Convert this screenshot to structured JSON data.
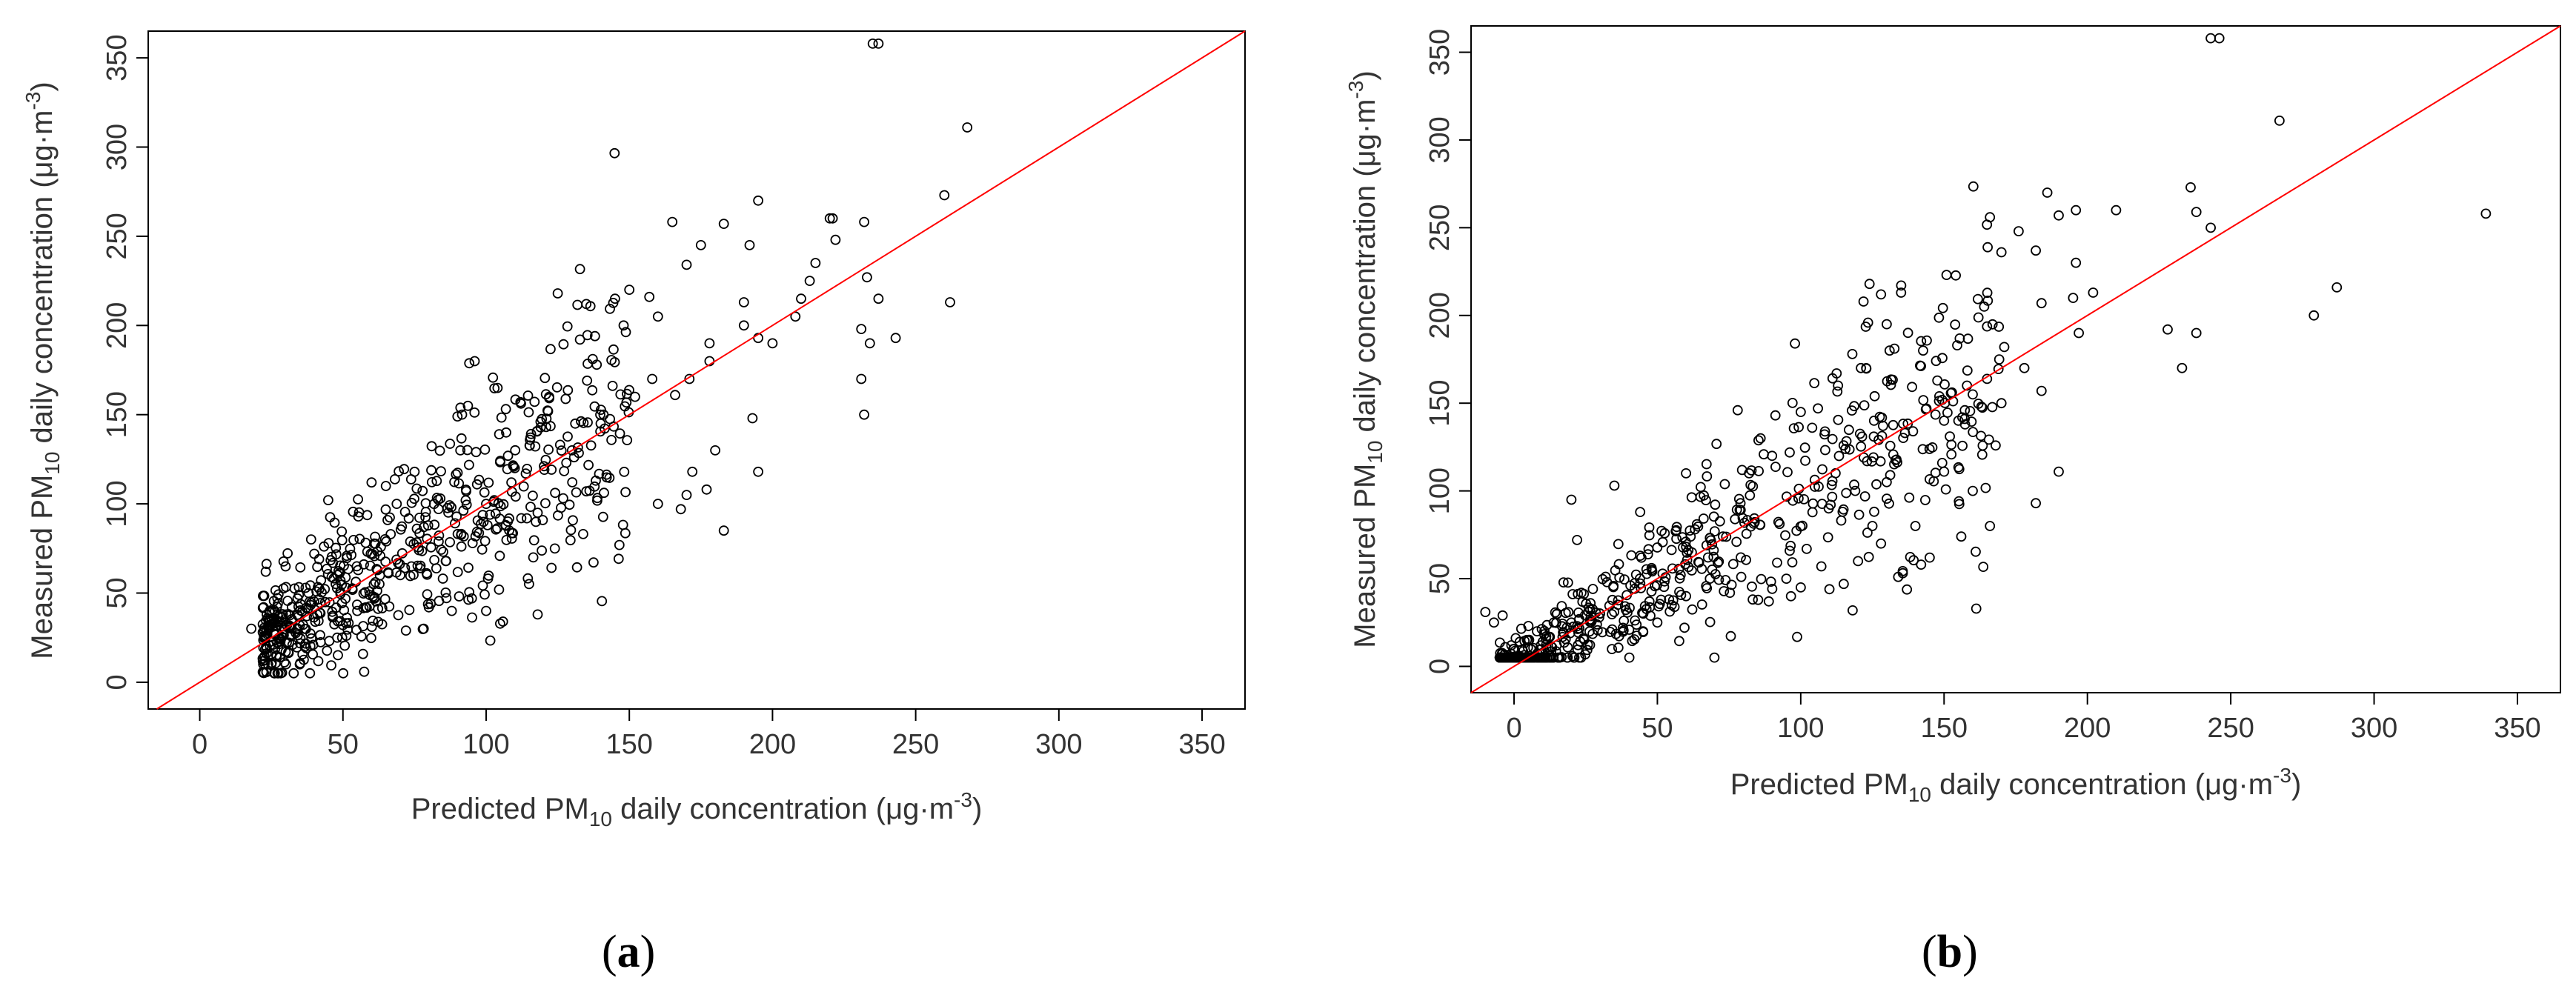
{
  "chart_data": [
    {
      "type": "scatter",
      "panel_label": "(a)",
      "panel_letter": "a",
      "xlabel": "Predicted PM10 daily concentration (μg·m-3)",
      "xlabel_parts": {
        "pre": "Predicted PM",
        "sub": "10",
        "mid": " daily concentration (",
        "unit": "μg",
        "dot": "·",
        "m": "m",
        "sup": "-3",
        "close": ")"
      },
      "ylabel": "Measured PM10 daily concentration (μg·m-3)",
      "ylabel_parts": {
        "pre": "Measured PM",
        "sub": "10",
        "mid": " daily concentration (",
        "unit": "μg",
        "dot": "·",
        "m": "m",
        "sup": "-3",
        "close": ")"
      },
      "xlim": [
        -18,
        365
      ],
      "ylim": [
        -15,
        365
      ],
      "xticks": [
        0,
        50,
        100,
        150,
        200,
        250,
        300,
        350
      ],
      "yticks": [
        0,
        50,
        100,
        150,
        200,
        250,
        300,
        350
      ],
      "reference_line": {
        "type": "1:1",
        "color": "#ff0000"
      },
      "marker": "open-circle",
      "point_color": "#000000",
      "cloud_sample": {
        "n": 620,
        "x_range": [
          22,
          150
        ],
        "relation": "y ≈ x",
        "note": "dense cloud of daily points, estimated"
      },
      "points": [
        [
          235,
          358
        ],
        [
          237,
          358
        ],
        [
          268,
          311
        ],
        [
          260,
          273
        ],
        [
          262,
          213
        ],
        [
          232,
          258
        ],
        [
          220,
          260
        ],
        [
          221,
          260
        ],
        [
          222,
          248
        ],
        [
          233,
          227
        ],
        [
          231,
          198
        ],
        [
          234,
          190
        ],
        [
          232,
          150
        ],
        [
          231,
          170
        ],
        [
          243,
          193
        ],
        [
          237,
          215
        ],
        [
          195,
          270
        ],
        [
          183,
          257
        ],
        [
          192,
          245
        ],
        [
          190,
          200
        ],
        [
          195,
          193
        ],
        [
          193,
          148
        ],
        [
          195,
          118
        ],
        [
          175,
          245
        ],
        [
          165,
          258
        ],
        [
          170,
          234
        ],
        [
          160,
          205
        ],
        [
          178,
          180
        ],
        [
          190,
          213
        ],
        [
          180,
          130
        ],
        [
          200,
          190
        ],
        [
          210,
          215
        ],
        [
          213,
          225
        ],
        [
          215,
          235
        ],
        [
          208,
          205
        ],
        [
          157,
          216
        ],
        [
          150,
          220
        ],
        [
          145,
          215
        ],
        [
          135,
          212
        ],
        [
          125,
          218
        ],
        [
          138,
          194
        ],
        [
          148,
          200
        ],
        [
          170,
          105
        ],
        [
          168,
          97
        ],
        [
          160,
          100
        ],
        [
          183,
          85
        ],
        [
          172,
          118
        ],
        [
          177,
          108
        ],
        [
          119,
          146
        ],
        [
          110,
          120
        ],
        [
          128,
          123
        ],
        [
          100,
          100
        ],
        [
          118,
          95
        ],
        [
          135,
          107
        ],
        [
          140,
          145
        ],
        [
          96,
          180
        ],
        [
          104,
          165
        ],
        [
          112,
          157
        ],
        [
          90,
          149
        ],
        [
          60,
          112
        ],
        [
          65,
          110
        ],
        [
          75,
          118
        ],
        [
          38,
          50
        ],
        [
          40,
          72
        ],
        [
          45,
          78
        ],
        [
          30,
          17
        ],
        [
          28,
          14
        ],
        [
          22,
          28
        ],
        [
          18,
          30
        ],
        [
          25,
          10
        ],
        [
          130,
          130
        ],
        [
          141,
          150
        ],
        [
          152,
          160
        ],
        [
          158,
          170
        ],
        [
          166,
          161
        ],
        [
          171,
          170
        ],
        [
          178,
          190
        ],
        [
          122,
          160
        ],
        [
          107,
          140
        ],
        [
          91,
          130
        ],
        [
          84,
          103
        ],
        [
          70,
          60
        ],
        [
          55,
          40
        ],
        [
          50,
          32
        ],
        [
          48,
          25
        ],
        [
          72,
          29
        ],
        [
          80,
          42
        ],
        [
          88,
          40
        ],
        [
          95,
          47
        ],
        [
          100,
          40
        ],
        [
          115,
          55
        ],
        [
          118,
          38
        ]
      ]
    },
    {
      "type": "scatter",
      "panel_label": "(b)",
      "panel_letter": "b",
      "xlabel": "Predicted PM10 daily concentration (μg·m-3)",
      "xlabel_parts": {
        "pre": "Predicted PM",
        "sub": "10",
        "mid": " daily concentration (",
        "unit": "μg",
        "dot": "·",
        "m": "m",
        "sup": "-3",
        "close": ")"
      },
      "ylabel": "Measured PM10 daily concentration (μg·m-3)",
      "ylabel_parts": {
        "pre": "Measured PM",
        "sub": "10",
        "mid": " daily concentration (",
        "unit": "μg",
        "dot": "·",
        "m": "m",
        "sup": "-3",
        "close": ")"
      },
      "xlim": [
        -15,
        365
      ],
      "ylim": [
        -15,
        365
      ],
      "xticks": [
        0,
        50,
        100,
        150,
        200,
        250,
        300,
        350
      ],
      "yticks": [
        0,
        50,
        100,
        150,
        200,
        250,
        300,
        350
      ],
      "reference_line": {
        "type": "1:1",
        "color": "#ff0000"
      },
      "marker": "open-circle",
      "point_color": "#000000",
      "cloud_sample": {
        "n": 620,
        "x_range": [
          -5,
          170
        ],
        "relation": "y ≈ x",
        "note": "dense cloud of daily points, estimated"
      },
      "points": [
        [
          243,
          358
        ],
        [
          246,
          358
        ],
        [
          267,
          311
        ],
        [
          339,
          258
        ],
        [
          287,
          216
        ],
        [
          279,
          200
        ],
        [
          236,
          273
        ],
        [
          238,
          259
        ],
        [
          243,
          250
        ],
        [
          238,
          190
        ],
        [
          233,
          170
        ],
        [
          228,
          192
        ],
        [
          196,
          260
        ],
        [
          210,
          260
        ],
        [
          202,
          213
        ],
        [
          196,
          230
        ],
        [
          197,
          190
        ],
        [
          195,
          210
        ],
        [
          190,
          111
        ],
        [
          190,
          257
        ],
        [
          186,
          270
        ],
        [
          182,
          237
        ],
        [
          184,
          207
        ],
        [
          176,
          248
        ],
        [
          166,
          256
        ],
        [
          170,
          236
        ],
        [
          164,
          205
        ],
        [
          171,
          182
        ],
        [
          178,
          170
        ],
        [
          163,
          148
        ],
        [
          160,
          155
        ],
        [
          170,
          150
        ],
        [
          184,
          157
        ],
        [
          182,
          93
        ],
        [
          166,
          80
        ],
        [
          160,
          100
        ],
        [
          150,
          111
        ],
        [
          145,
          62
        ],
        [
          142,
          58
        ],
        [
          140,
          80
        ],
        [
          130,
          105
        ],
        [
          134,
          51
        ],
        [
          125,
          80
        ],
        [
          122,
          119
        ],
        [
          119,
          100
        ],
        [
          124,
          218
        ],
        [
          128,
          212
        ],
        [
          130,
          195
        ],
        [
          135,
          213
        ],
        [
          131,
          180
        ],
        [
          121,
          170
        ],
        [
          118,
          178
        ],
        [
          113,
          160
        ],
        [
          106,
          147
        ],
        [
          104,
          136
        ],
        [
          98,
          184
        ],
        [
          100,
          145
        ],
        [
          90,
          120
        ],
        [
          82,
          110
        ],
        [
          79,
          93
        ],
        [
          70,
          77
        ],
        [
          62,
          65
        ],
        [
          60,
          40
        ],
        [
          55,
          35
        ],
        [
          50,
          25
        ],
        [
          45,
          20
        ],
        [
          38,
          22
        ],
        [
          30,
          30
        ],
        [
          20,
          25
        ],
        [
          15,
          30
        ],
        [
          8,
          20
        ],
        [
          5,
          23
        ],
        [
          -4,
          29
        ],
        [
          -7,
          25
        ],
        [
          -10,
          31
        ],
        [
          0,
          10
        ],
        [
          2,
          14
        ],
        [
          20,
          95
        ],
        [
          22,
          72
        ],
        [
          35,
          103
        ],
        [
          44,
          88
        ],
        [
          60,
          110
        ],
        [
          78,
          146
        ],
        [
          86,
          130
        ],
        [
          95,
          50
        ],
        [
          100,
          45
        ],
        [
          110,
          44
        ],
        [
          115,
          47
        ],
        [
          120,
          60
        ],
        [
          128,
          70
        ],
        [
          150,
          140
        ],
        [
          155,
          140
        ],
        [
          158,
          160
        ]
      ]
    }
  ]
}
